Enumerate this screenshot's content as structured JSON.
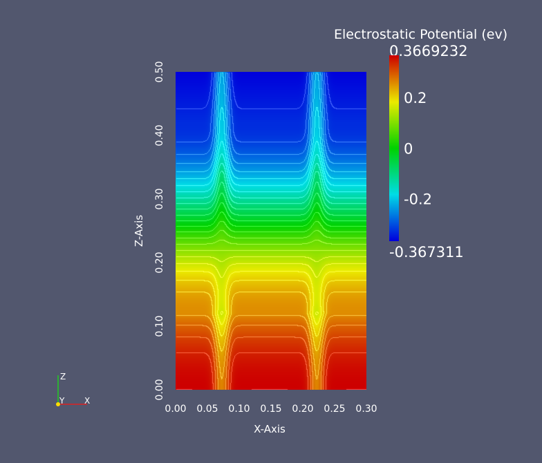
{
  "chart_data": {
    "type": "heatmap",
    "title": "",
    "xlabel": "X-Axis",
    "ylabel": "Z-Axis",
    "xlim": [
      0.0,
      0.3
    ],
    "ylim": [
      0.0,
      0.5
    ],
    "x_ticks": [
      "0.00",
      "0.05",
      "0.10",
      "0.15",
      "0.20",
      "0.25",
      "0.30"
    ],
    "y_ticks": [
      "0.00",
      "0.10",
      "0.20",
      "0.30",
      "0.40",
      "0.50"
    ],
    "field": {
      "name": "Electrostatic Potential (ev)",
      "min": -0.367311,
      "max": 0.3669232,
      "colormap": "rainbow-blue-to-red",
      "contour_lines": true,
      "features": [
        {
          "kind": "vertical-channel",
          "x": 0.072
        },
        {
          "kind": "vertical-channel",
          "x": 0.222
        }
      ]
    },
    "colorbar": {
      "title": "Electrostatic Potential (ev)",
      "max_label": "0.3669232",
      "min_label": "-0.367311",
      "tick_labels": [
        "0.2",
        "0",
        "-0.2"
      ],
      "tick_values": [
        0.2,
        0,
        -0.2
      ]
    },
    "orientation_axes": {
      "labels": [
        "Z",
        "Y",
        "X"
      ],
      "colors": {
        "Z": "#22cc22",
        "Y": "#ffdd00",
        "X": "#dd2222"
      }
    }
  }
}
